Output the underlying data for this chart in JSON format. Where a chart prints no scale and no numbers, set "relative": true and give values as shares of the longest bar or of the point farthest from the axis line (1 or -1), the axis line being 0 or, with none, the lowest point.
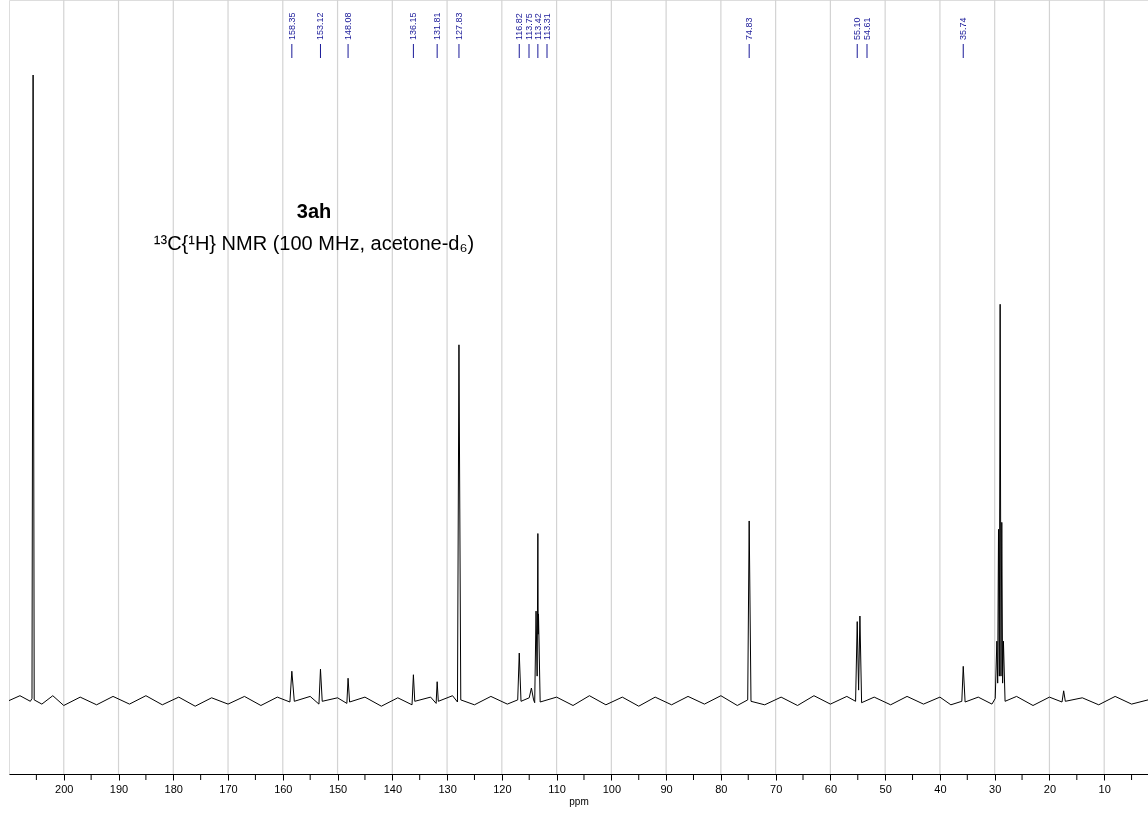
{
  "chart_data": {
    "type": "line",
    "relative": true,
    "xlabel": "ppm",
    "xlim": [
      210,
      2
    ],
    "xticks": [
      {
        "value": 205,
        "label": null
      },
      200,
      {
        "value": 195,
        "label": null
      },
      190,
      {
        "value": 185,
        "label": null
      },
      180,
      {
        "value": 175,
        "label": null
      },
      170,
      {
        "value": 165,
        "label": null
      },
      160,
      {
        "value": 155,
        "label": null
      },
      150,
      {
        "value": 145,
        "label": null
      },
      140,
      {
        "value": 135,
        "label": null
      },
      130,
      {
        "value": 125,
        "label": null
      },
      120,
      {
        "value": 115,
        "label": null
      },
      110,
      {
        "value": 105,
        "label": null
      },
      100,
      {
        "value": 95,
        "label": null
      },
      90,
      {
        "value": 85,
        "label": null
      },
      80,
      {
        "value": 75,
        "label": null
      },
      70,
      {
        "value": 65,
        "label": null
      },
      60,
      {
        "value": 55,
        "label": null
      },
      50,
      {
        "value": 45,
        "label": null
      },
      40,
      {
        "value": 35,
        "label": null
      },
      30,
      {
        "value": 25,
        "label": null
      },
      20,
      {
        "value": 15,
        "label": null
      },
      10,
      {
        "value": 5,
        "label": null
      }
    ],
    "grid": "x",
    "tick_labels": "x",
    "marker": "none",
    "line_style": "solid",
    "x": [
      210,
      208,
      206.1,
      205.8,
      205.6,
      205.4,
      204,
      202,
      200,
      197,
      194,
      191,
      188,
      185,
      182,
      179,
      176,
      173,
      170,
      167,
      164,
      161,
      158.7,
      158.35,
      157.9,
      155,
      153.4,
      153.12,
      152.8,
      150,
      148.3,
      148.08,
      147.8,
      145,
      142,
      139,
      136.4,
      136.15,
      135.9,
      133,
      132.0,
      131.81,
      131.6,
      129,
      128.1,
      127.83,
      127.5,
      125,
      122,
      119,
      117.1,
      116.82,
      116.5,
      115,
      114.6,
      114.2,
      114.0,
      113.75,
      113.55,
      113.42,
      113.36,
      113.31,
      113.0,
      110,
      107,
      104,
      101,
      98,
      95,
      92,
      89,
      86,
      83,
      80,
      77,
      75.1,
      74.83,
      74.5,
      72,
      69,
      66,
      63,
      60,
      57,
      55.4,
      55.1,
      54.85,
      54.61,
      54.3,
      52,
      49,
      46,
      43,
      40,
      38,
      36.0,
      35.74,
      35.4,
      33,
      30.5,
      29.9,
      29.6,
      29.45,
      29.3,
      29.15,
      29.0,
      28.85,
      28.7,
      28.55,
      28.4,
      28.1,
      26,
      23,
      20,
      17.7,
      17.4,
      17.1,
      14,
      11,
      8,
      5,
      2
    ],
    "series": [
      {
        "color": "#000000",
        "values": [
          0.105,
          0.112,
          0.104,
          0.108,
          1.0,
          0.106,
          0.1,
          0.112,
          0.098,
          0.11,
          0.099,
          0.111,
          0.1,
          0.112,
          0.099,
          0.11,
          0.097,
          0.109,
          0.1,
          0.111,
          0.098,
          0.11,
          0.103,
          0.147,
          0.104,
          0.111,
          0.1,
          0.15,
          0.104,
          0.109,
          0.101,
          0.137,
          0.103,
          0.11,
          0.097,
          0.109,
          0.099,
          0.142,
          0.104,
          0.11,
          0.101,
          0.132,
          0.104,
          0.112,
          0.103,
          0.614,
          0.106,
          0.099,
          0.111,
          0.1,
          0.106,
          0.173,
          0.104,
          0.109,
          0.123,
          0.106,
          0.102,
          0.233,
          0.14,
          0.344,
          0.2,
          0.229,
          0.103,
          0.11,
          0.098,
          0.112,
          0.099,
          0.11,
          0.097,
          0.11,
          0.099,
          0.111,
          0.1,
          0.112,
          0.098,
          0.106,
          0.362,
          0.104,
          0.099,
          0.11,
          0.098,
          0.112,
          0.1,
          0.111,
          0.104,
          0.218,
          0.12,
          0.226,
          0.102,
          0.11,
          0.099,
          0.111,
          0.1,
          0.11,
          0.099,
          0.104,
          0.154,
          0.103,
          0.11,
          0.1,
          0.108,
          0.19,
          0.13,
          0.35,
          0.14,
          0.672,
          0.14,
          0.36,
          0.13,
          0.19,
          0.104,
          0.111,
          0.098,
          0.11,
          0.103,
          0.119,
          0.104,
          0.109,
          0.099,
          0.111,
          0.1,
          0.106
        ]
      }
    ],
    "annotations": [
      {
        "text": "158.35",
        "x": 158.35
      },
      {
        "text": "153.12",
        "x": 153.12
      },
      {
        "text": "148.08",
        "x": 148.08
      },
      {
        "text": "136.15",
        "x": 136.15
      },
      {
        "text": "131.81",
        "x": 131.81
      },
      {
        "text": "127.83",
        "x": 127.83
      },
      {
        "text": "116.82",
        "x": 116.82
      },
      {
        "text": "113.42",
        "x": 113.42
      },
      {
        "text": "74.83",
        "x": 74.83
      },
      {
        "text": "55.10",
        "x": 55.1
      },
      {
        "text": "35.74",
        "x": 35.74
      },
      "3ah",
      "¹³C{¹H} NMR (100 MHz, acetone-d₆)",
      "113.75",
      "113.31",
      "54.61"
    ]
  }
}
